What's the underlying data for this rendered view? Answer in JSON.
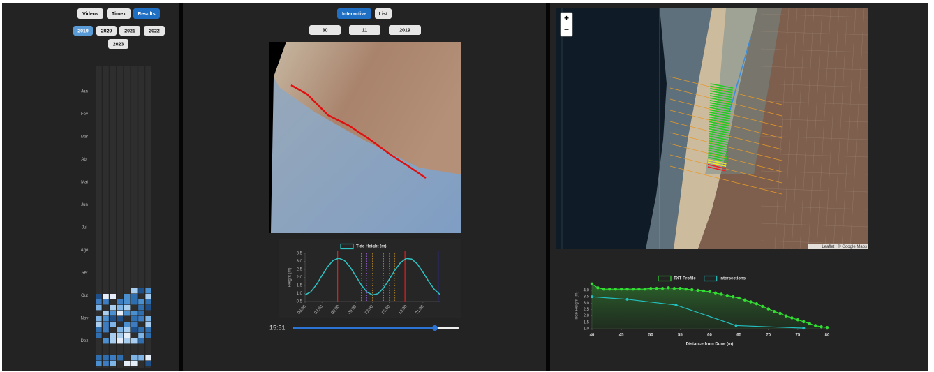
{
  "left": {
    "tabs": [
      "Videos",
      "Timex",
      "Results"
    ],
    "years": [
      "2019",
      "2020",
      "2021",
      "2022",
      "2023"
    ],
    "months": [
      "Jan",
      "Fev",
      "Mar",
      "Abr",
      "Mai",
      "Jun",
      "Jul",
      "Ago",
      "Set",
      "Out",
      "Nov",
      "Dez"
    ]
  },
  "middle": {
    "tabs": [
      "Interactive",
      "List"
    ],
    "date": [
      "30",
      "11",
      "2019"
    ],
    "time": "15:51"
  },
  "map": {
    "zoom_in": "+",
    "zoom_out": "−",
    "attribution": "Leaflet | © Google Maps"
  },
  "chart_data": [
    {
      "type": "line",
      "ylabel": "Height (m)",
      "x": [
        0,
        1,
        2,
        3,
        4,
        5,
        6,
        7,
        8,
        9,
        10,
        11,
        12,
        13,
        14,
        15,
        16,
        17,
        18,
        19,
        20,
        21,
        22,
        23,
        24
      ],
      "series": [
        {
          "name": "Tide Height (m)",
          "color": "#2ec4c4",
          "values": [
            0.91,
            1.1,
            1.54,
            2.11,
            2.66,
            3.06,
            3.2,
            3.06,
            2.66,
            2.11,
            1.54,
            1.1,
            0.91,
            0.99,
            1.35,
            1.88,
            2.45,
            2.92,
            3.18,
            3.14,
            2.84,
            2.33,
            1.76,
            1.27,
            0.95
          ]
        }
      ],
      "xlim": [
        0,
        24
      ],
      "xticks": [
        {
          "value": 0,
          "label": "00:00"
        },
        {
          "value": 3,
          "label": "03:00"
        },
        {
          "value": 6,
          "label": "06:00"
        },
        {
          "value": 9,
          "label": "09:00"
        },
        {
          "value": 12,
          "label": "12:00"
        },
        {
          "value": 15,
          "label": "15:00"
        },
        {
          "value": 18,
          "label": "18:00"
        },
        {
          "value": 21,
          "label": "21:00"
        }
      ],
      "ylim": [
        0.5,
        3.5
      ],
      "yticks": [
        0.5,
        {
          "value": 1,
          "label": "1.0"
        },
        1.5,
        {
          "value": 2,
          "label": "2.0"
        },
        2.5,
        {
          "value": 3,
          "label": "3.0"
        },
        3.5
      ],
      "markers": [
        {
          "x": 5.8,
          "color": "#d61f1f"
        },
        {
          "x": 17.8,
          "color": "#d61f1f"
        },
        {
          "x": 23.7,
          "color": "#2a2ad8"
        }
      ],
      "guides": [
        {
          "x": 10,
          "color": "#c08a2a"
        },
        {
          "x": 11,
          "color": "#9a5fd0"
        },
        {
          "x": 12,
          "color": "#c08a2a"
        },
        {
          "x": 13,
          "color": "#9a5fd0"
        },
        {
          "x": 14,
          "color": "#c08a2a"
        },
        {
          "x": 15,
          "color": "#9a5fd0"
        },
        {
          "x": 16,
          "color": "#c08a2a"
        }
      ]
    },
    {
      "type": "line",
      "xlabel": "Distance from Dune (m)",
      "ylabel": "Tide Height (m)",
      "series": [
        {
          "name": "TXT Profile",
          "color": "#33dd33",
          "x": [
            40,
            41,
            42,
            43,
            44,
            45,
            46,
            47,
            48,
            49,
            50,
            51,
            52,
            53,
            54,
            55,
            56,
            57,
            58,
            59,
            60,
            61,
            62,
            63,
            64,
            65,
            66,
            67,
            68,
            69,
            70,
            71,
            72,
            73,
            74,
            75,
            76,
            77,
            78,
            79,
            80
          ],
          "values": [
            4.5,
            4.2,
            4.1,
            4.1,
            4.1,
            4.1,
            4.1,
            4.1,
            4.1,
            4.1,
            4.15,
            4.15,
            4.15,
            4.2,
            4.15,
            4.15,
            4.1,
            4.05,
            4.0,
            3.95,
            3.9,
            3.8,
            3.7,
            3.6,
            3.5,
            3.4,
            3.25,
            3.1,
            2.95,
            2.75,
            2.55,
            2.35,
            2.2,
            2.0,
            1.85,
            1.7,
            1.55,
            1.4,
            1.25,
            1.15,
            1.1
          ]
        },
        {
          "name": "Intersections",
          "color": "#22c0c0",
          "x": [
            40,
            46,
            54.3,
            64.5,
            76
          ],
          "values": [
            3.5,
            3.3,
            2.85,
            1.25,
            1.05
          ]
        }
      ],
      "xlim": [
        40,
        80
      ],
      "xticks": [
        40,
        45,
        50,
        55,
        60,
        65,
        70,
        75,
        80
      ],
      "ylim": [
        1,
        4.6
      ],
      "yticks": [
        {
          "value": 1,
          "label": "1,0"
        },
        {
          "value": 1.5,
          "label": "1,5"
        },
        {
          "value": 2,
          "label": "2,0"
        },
        {
          "value": 2.5,
          "label": "2,5"
        },
        {
          "value": 3,
          "label": "3,0"
        },
        {
          "value": 3.5,
          "label": "3,5"
        },
        {
          "value": 4,
          "label": "4,0"
        }
      ]
    }
  ]
}
